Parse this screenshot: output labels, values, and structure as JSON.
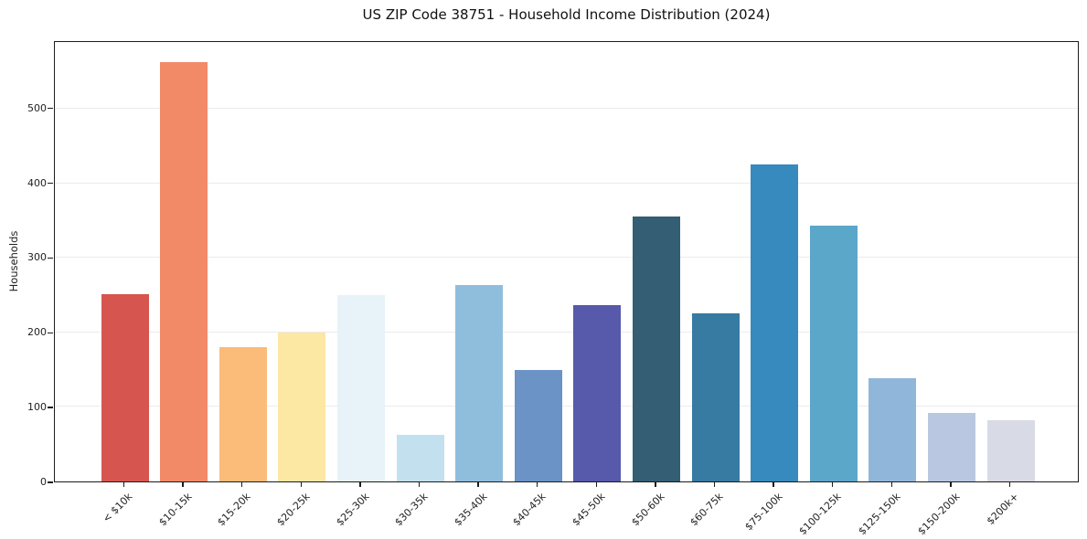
{
  "chart_data": {
    "type": "bar",
    "title": "US ZIP Code 38751 - Household Income Distribution (2024)",
    "xlabel": "",
    "ylabel": "Households",
    "categories": [
      "< $10k",
      "$10-15k",
      "$15-20k",
      "$20-25k",
      "$25-30k",
      "$30-35k",
      "$35-40k",
      "$40-45k",
      "$45-50k",
      "$50-60k",
      "$60-75k",
      "$75-100k",
      "$100-125k",
      "$125-150k",
      "$150-200k",
      "$200k+"
    ],
    "values": [
      251,
      563,
      180,
      200,
      250,
      63,
      264,
      150,
      237,
      356,
      226,
      426,
      343,
      139,
      92,
      82
    ],
    "bar_colors": [
      "#d6564f",
      "#f28a67",
      "#fbbc79",
      "#fce7a3",
      "#e7f3f8",
      "#c3e0ee",
      "#8fbedd",
      "#6b93c6",
      "#5759ab",
      "#345e74",
      "#377ba2",
      "#368abd",
      "#5ba7c9",
      "#90b7da",
      "#b9c8e0",
      "#d8dae6"
    ],
    "yticks": [
      0,
      100,
      200,
      300,
      400,
      500
    ],
    "ylim": [
      0,
      590
    ],
    "grid": "horizontal",
    "gridline_color": "#ebebef",
    "legend": "none",
    "xtick_rotation": 45,
    "bar_width_frac": 0.8
  }
}
